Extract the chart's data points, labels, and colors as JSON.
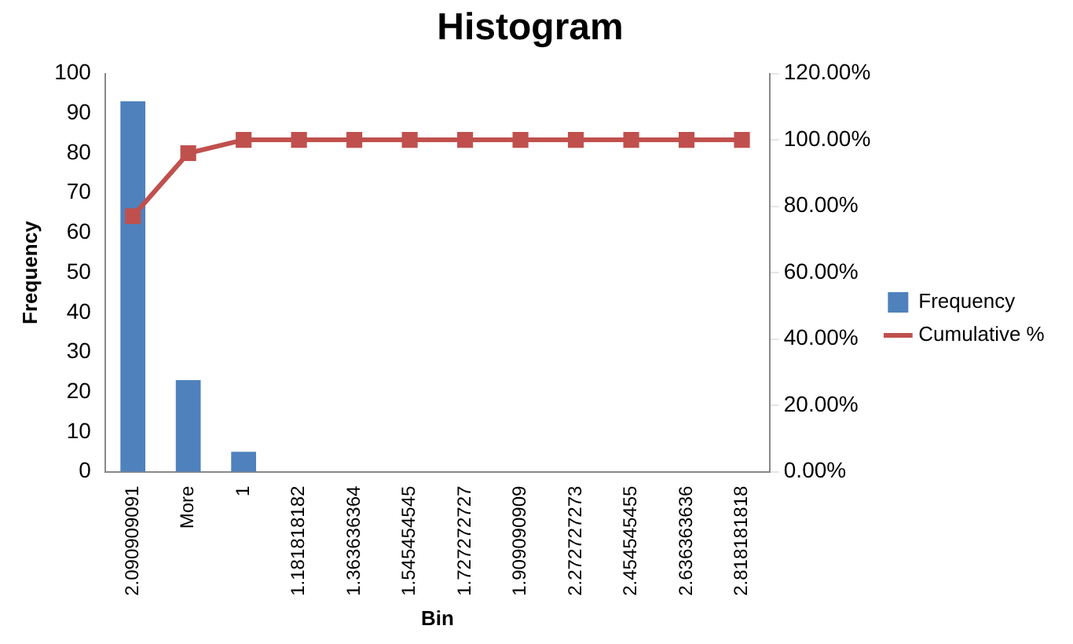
{
  "chart_data": {
    "type": "bar",
    "title": "Histogram",
    "xlabel": "Bin",
    "ylabel": "Frequency",
    "categories": [
      "2.090909091",
      "More",
      "1",
      "1.181818182",
      "1.363636364",
      "1.545454545",
      "1.727272727",
      "1.909090909",
      "2.272727273",
      "2.454545455",
      "2.636363636",
      "2.818181818"
    ],
    "series": [
      {
        "name": "Frequency",
        "color": "#4f81bd",
        "values": [
          93,
          23,
          5,
          0,
          0,
          0,
          0,
          0,
          0,
          0,
          0,
          0
        ]
      },
      {
        "name": "Cumulative %",
        "type": "line",
        "axis": "y2",
        "marker": "square",
        "color": "#c0504d",
        "values": [
          77,
          96,
          100,
          100,
          100,
          100,
          100,
          100,
          100,
          100,
          100,
          100
        ]
      }
    ],
    "ylim": [
      0,
      100
    ],
    "yticks": [
      0,
      10,
      20,
      30,
      40,
      50,
      60,
      70,
      80,
      90,
      100
    ],
    "y2lim": [
      0,
      120
    ],
    "y2ticks": [
      {
        "value": 0,
        "label": "0.00%"
      },
      {
        "value": 20,
        "label": "20.00%"
      },
      {
        "value": 40,
        "label": "40.00%"
      },
      {
        "value": 60,
        "label": "60.00%"
      },
      {
        "value": 80,
        "label": "80.00%"
      },
      {
        "value": 100,
        "label": "100.00%"
      },
      {
        "value": 120,
        "label": "120.00%"
      }
    ],
    "grid": false,
    "legend": "right"
  }
}
